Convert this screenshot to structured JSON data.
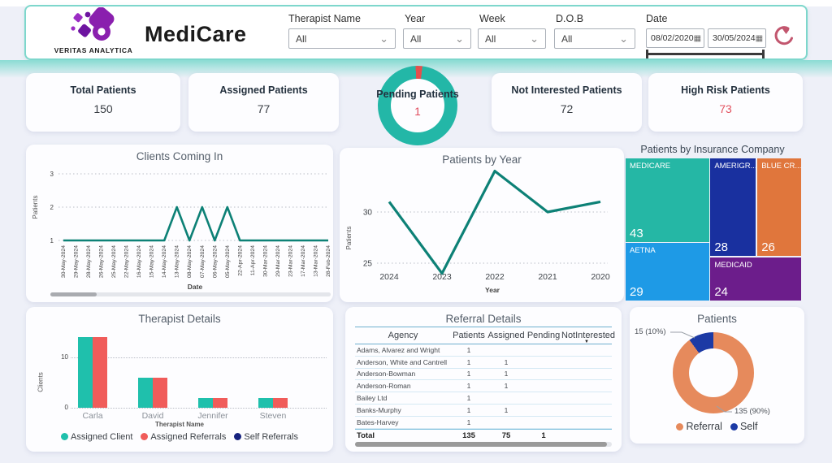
{
  "header": {
    "brand": "VERITAS ANALYTICA",
    "app_title": "MediCare",
    "filters": [
      {
        "label": "Therapist Name",
        "value": "All"
      },
      {
        "label": "Year",
        "value": "All"
      },
      {
        "label": "Week",
        "value": "All"
      },
      {
        "label": "D.O.B",
        "value": "All"
      }
    ],
    "date_filter": {
      "label": "Date",
      "start": "08/02/2020",
      "end": "30/05/2024"
    }
  },
  "kpis": [
    {
      "label": "Total Patients",
      "value": "150",
      "value_color": "#3a3f45"
    },
    {
      "label": "Assigned Patients",
      "value": "77",
      "value_color": "#3a3f45"
    },
    {
      "label": "Not Interested Patients",
      "value": "72",
      "value_color": "#3a3f45"
    },
    {
      "label": "High Risk Patients",
      "value": "73",
      "value_color": "#e25360"
    }
  ],
  "pending_kpi": {
    "label": "Pending Patients",
    "value": "1",
    "ring_color": "#23b7a7",
    "slice_color": "#e4504e"
  },
  "colors": {
    "teal_line": "#0d8176",
    "teal_bar": "#1fc0ac",
    "coral": "#f05c5a",
    "navy": "#16227e",
    "orange": "#e68a5c",
    "self_blue": "#1c3aa5"
  },
  "chart_data": [
    {
      "id": "clients_coming_in",
      "type": "line",
      "title": "Clients Coming In",
      "xlabel": "Date",
      "ylabel": "Patients",
      "yticks": [
        1,
        2,
        3
      ],
      "ylim": [
        1,
        3
      ],
      "categories": [
        "30-May-2024",
        "29-May-2024",
        "28-May-2024",
        "26-May-2024",
        "25-May-2024",
        "22-May-2024",
        "16-May-2024",
        "15-May-2024",
        "14-May-2024",
        "13-May-2024",
        "08-May-2024",
        "07-May-2024",
        "06-May-2024",
        "05-May-2024",
        "22-Apr-2024",
        "11-Apr-2024",
        "30-Mar-2024",
        "29-Mar-2024",
        "23-Mar-2024",
        "17-Mar-2024",
        "13-Mar-2024",
        "28-Feb-2024"
      ],
      "values": [
        1,
        1,
        1,
        1,
        1,
        1,
        1,
        1,
        1,
        2,
        1,
        2,
        1,
        2,
        1,
        1,
        1,
        1,
        1,
        1,
        1,
        1
      ]
    },
    {
      "id": "patients_by_year",
      "type": "line",
      "title": "Patients by Year",
      "xlabel": "Year",
      "ylabel": "Patients",
      "yticks": [
        25,
        30
      ],
      "ylim": [
        23,
        35
      ],
      "categories": [
        "2024",
        "2023",
        "2022",
        "2021",
        "2020"
      ],
      "values": [
        31,
        24,
        34,
        30,
        31
      ]
    },
    {
      "id": "insurance_treemap",
      "type": "treemap",
      "title": "Patients by Insurance Company",
      "tiles": [
        {
          "label": "MEDICARE",
          "value": 43,
          "color": "#25b7a5",
          "rect": {
            "l": 0,
            "t": 0,
            "w": 47.5,
            "h": 58.7
          }
        },
        {
          "label": "AETNA",
          "value": 29,
          "color": "#1e9ae6",
          "rect": {
            "l": 0,
            "t": 59.6,
            "w": 47.5,
            "h": 40.4
          }
        },
        {
          "label": "AMERIGR...",
          "value": 28,
          "color": "#19309f",
          "rect": {
            "l": 48.3,
            "t": 0,
            "w": 26,
            "h": 68.6
          }
        },
        {
          "label": "BLUE CR...",
          "value": 26,
          "color": "#e0763c",
          "rect": {
            "l": 75.1,
            "t": 0,
            "w": 24.9,
            "h": 68.6
          }
        },
        {
          "label": "MEDICAID",
          "value": 24,
          "color": "#6c1d8b",
          "rect": {
            "l": 48.3,
            "t": 69.5,
            "w": 51.7,
            "h": 30.5
          }
        }
      ]
    },
    {
      "id": "therapist_details",
      "type": "bar",
      "title": "Therapist Details",
      "xlabel": "Therapist Name",
      "ylabel": "Clients",
      "yticks": [
        0,
        10
      ],
      "ylim": [
        0,
        15
      ],
      "categories": [
        "Carla",
        "David",
        "Jennifer",
        "Steven"
      ],
      "series": [
        {
          "name": "Assigned Client",
          "color": "#1fc0ac",
          "values": [
            14,
            6,
            2,
            2
          ]
        },
        {
          "name": "Assigned Referrals",
          "color": "#f05c5a",
          "values": [
            14,
            6,
            2,
            2
          ]
        },
        {
          "name": "Self Referrals",
          "color": "#16227e",
          "values": [
            0,
            0,
            0,
            0
          ]
        }
      ],
      "legend_position": "bottom"
    },
    {
      "id": "referral_details",
      "type": "table",
      "title": "Referral Details",
      "columns": [
        "Agency",
        "Patients",
        "Assigned",
        "Pending",
        "NotInterested"
      ],
      "sort_column": "NotInterested",
      "rows": [
        [
          "Adams, Alvarez and Wright",
          "1",
          "",
          "",
          ""
        ],
        [
          "Anderson, White and Cantrell",
          "1",
          "1",
          "",
          ""
        ],
        [
          "Anderson-Bowman",
          "1",
          "1",
          "",
          ""
        ],
        [
          "Anderson-Roman",
          "1",
          "1",
          "",
          ""
        ],
        [
          "Bailey Ltd",
          "1",
          "",
          "",
          ""
        ],
        [
          "Banks-Murphy",
          "1",
          "1",
          "",
          ""
        ],
        [
          "Bates-Harvey",
          "1",
          "",
          "",
          ""
        ]
      ],
      "total_row": [
        "Total",
        "135",
        "75",
        "1",
        ""
      ]
    },
    {
      "id": "patients_donut",
      "type": "pie",
      "title": "Patients",
      "slices": [
        {
          "name": "Referral",
          "value": 135,
          "pct": 90,
          "label": "135 (90%)",
          "color": "#e68a5c"
        },
        {
          "name": "Self",
          "value": 15,
          "pct": 10,
          "label": "15 (10%)",
          "color": "#1c3aa5"
        }
      ],
      "legend_position": "bottom"
    }
  ]
}
